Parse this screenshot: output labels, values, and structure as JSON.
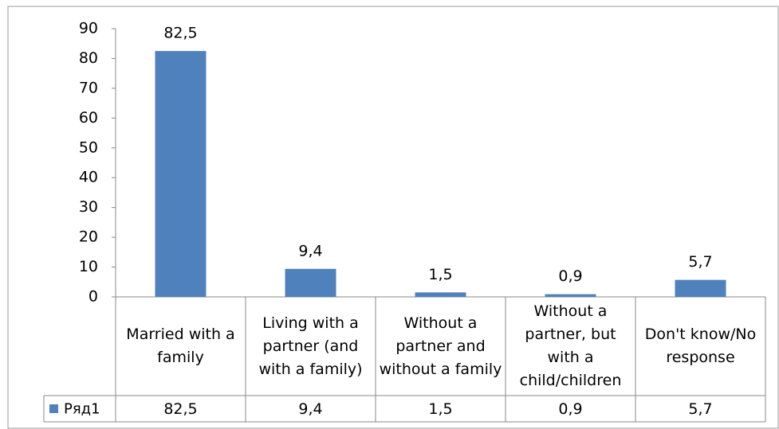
{
  "chart_data": {
    "type": "bar",
    "categories": [
      "Married with a family",
      "Living with a partner (and with a family)",
      "Without a partner and without a family",
      "Without a partner, but with a child/children",
      "Don't know/No response"
    ],
    "series": [
      {
        "name": "Ряд1",
        "color": "#4f81bd",
        "values": [
          82.5,
          9.4,
          1.5,
          0.9,
          5.7
        ],
        "value_labels": [
          "82,5",
          "9,4",
          "1,5",
          "0,9",
          "5,7"
        ]
      }
    ],
    "ylim": [
      0,
      90
    ],
    "yticks": [
      0,
      10,
      20,
      30,
      40,
      50,
      60,
      70,
      80,
      90
    ],
    "grid": false
  }
}
